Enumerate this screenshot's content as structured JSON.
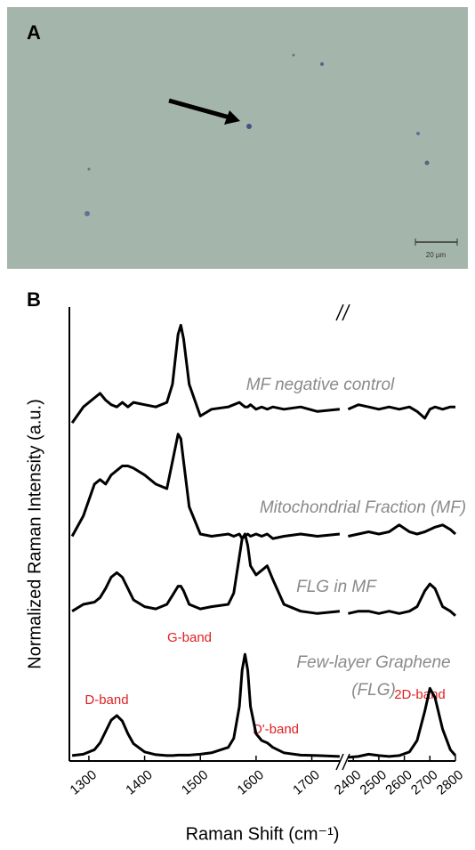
{
  "panel_a": {
    "label": "A",
    "scale_bar_label": "20 µm"
  },
  "chart_data": {
    "type": "line",
    "panel_label": "B",
    "x_label": "Raman Shift (cm⁻¹)",
    "y_label": "Normalized Raman Intensity (a.u.)",
    "xlim_segments": [
      [
        1265,
        1755
      ],
      [
        2375,
        2800
      ]
    ],
    "xticks": [
      1300,
      1400,
      1500,
      1600,
      1700,
      2400,
      2500,
      2600,
      2700,
      2800
    ],
    "ylim": [
      0,
      10
    ],
    "annotations": [
      "MF negative control",
      "Mitochondrial Fraction (MF)",
      "FLG in MF",
      "Few-layer Graphene",
      "(FLG)",
      "D-band",
      "G-band",
      "D'-band",
      "2D-band"
    ],
    "x": [
      1270,
      1290,
      1310,
      1320,
      1330,
      1340,
      1350,
      1360,
      1370,
      1380,
      1400,
      1420,
      1440,
      1450,
      1460,
      1465,
      1470,
      1480,
      1500,
      1520,
      1550,
      1560,
      1570,
      1575,
      1580,
      1585,
      1590,
      1600,
      1610,
      1620,
      1630,
      1650,
      1680,
      1710,
      1750,
      2380,
      2420,
      2460,
      2500,
      2540,
      2580,
      2620,
      2650,
      2680,
      2700,
      2720,
      2750,
      2780,
      2800
    ],
    "series": [
      {
        "color": "#000000",
        "values": [
          7.45,
          7.8,
          8.0,
          8.1,
          7.95,
          7.85,
          7.8,
          7.9,
          7.8,
          7.9,
          7.85,
          7.8,
          7.9,
          8.3,
          9.4,
          9.6,
          9.3,
          8.3,
          7.6,
          7.75,
          7.8,
          7.85,
          7.9,
          7.85,
          7.8,
          7.8,
          7.85,
          7.75,
          7.8,
          7.75,
          7.8,
          7.75,
          7.8,
          7.7,
          7.75,
          7.75,
          7.85,
          7.8,
          7.75,
          7.8,
          7.75,
          7.8,
          7.7,
          7.55,
          7.75,
          7.8,
          7.75,
          7.8,
          7.8
        ]
      },
      {
        "color": "#000000",
        "values": [
          4.95,
          5.4,
          6.1,
          6.2,
          6.1,
          6.3,
          6.4,
          6.5,
          6.5,
          6.45,
          6.3,
          6.1,
          6.0,
          6.6,
          7.2,
          7.1,
          6.6,
          5.6,
          5.0,
          4.95,
          5.0,
          4.95,
          5.0,
          4.9,
          4.95,
          5.0,
          4.95,
          5.0,
          4.95,
          5.0,
          4.9,
          4.95,
          5.0,
          4.95,
          5.0,
          4.95,
          5.0,
          5.05,
          5.0,
          5.05,
          5.2,
          5.05,
          5.0,
          5.05,
          5.1,
          5.15,
          5.2,
          5.1,
          5.0
        ]
      },
      {
        "color": "#000000",
        "values": [
          3.3,
          3.45,
          3.5,
          3.6,
          3.8,
          4.05,
          4.15,
          4.05,
          3.8,
          3.55,
          3.4,
          3.35,
          3.45,
          3.65,
          3.85,
          3.85,
          3.75,
          3.45,
          3.35,
          3.4,
          3.45,
          3.7,
          4.5,
          4.9,
          5.0,
          4.75,
          4.3,
          4.1,
          4.2,
          4.3,
          4.0,
          3.45,
          3.3,
          3.25,
          3.3,
          3.25,
          3.3,
          3.3,
          3.25,
          3.3,
          3.25,
          3.3,
          3.4,
          3.75,
          3.9,
          3.8,
          3.4,
          3.3,
          3.2
        ]
      },
      {
        "color": "#000000",
        "values": [
          0.12,
          0.15,
          0.25,
          0.4,
          0.65,
          0.9,
          1.0,
          0.88,
          0.6,
          0.38,
          0.2,
          0.14,
          0.12,
          0.12,
          0.13,
          0.13,
          0.13,
          0.13,
          0.15,
          0.18,
          0.3,
          0.5,
          1.2,
          2.0,
          2.35,
          2.0,
          1.2,
          0.6,
          0.45,
          0.4,
          0.3,
          0.18,
          0.13,
          0.12,
          0.1,
          0.08,
          0.1,
          0.15,
          0.12,
          0.1,
          0.12,
          0.2,
          0.45,
          1.1,
          1.6,
          1.4,
          0.7,
          0.25,
          0.12
        ]
      }
    ]
  }
}
